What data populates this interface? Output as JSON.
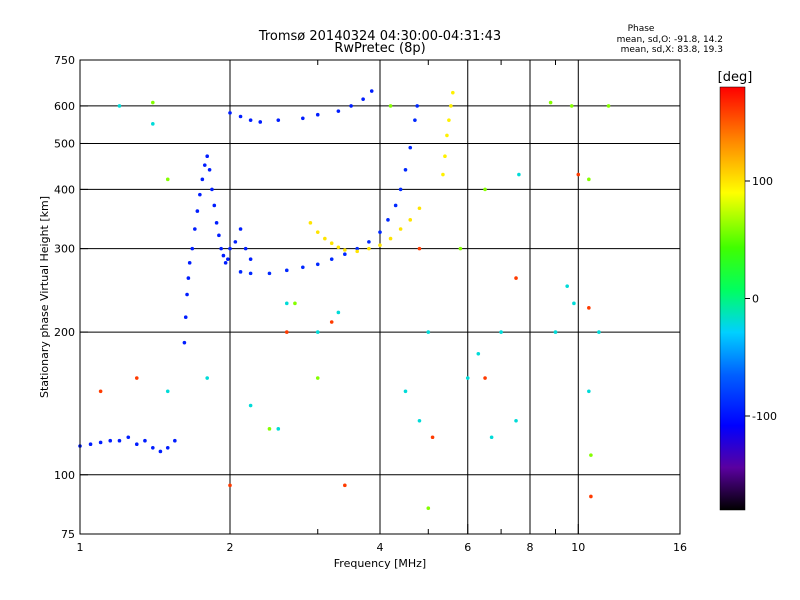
{
  "chart_data": {
    "type": "scatter",
    "title": "Tromsø 20140324 04:30:00-04:31:43",
    "subtitle": "RwPretec (8p)",
    "xlabel": "Frequency [MHz]",
    "ylabel": "Stationary phase Virtual Height [km]",
    "x_scale": "log",
    "y_scale": "log",
    "xlim": [
      1,
      16
    ],
    "ylim": [
      75,
      750
    ],
    "x_ticks": [
      1,
      2,
      4,
      6,
      8,
      10,
      16
    ],
    "x_tick_labels": [
      "1",
      "2",
      "4",
      "6",
      "8",
      "10",
      "16"
    ],
    "x_minor_ticks": [
      3,
      5,
      7,
      9
    ],
    "y_ticks": [
      75,
      100,
      200,
      300,
      400,
      500,
      600,
      750
    ],
    "y_tick_labels": [
      "75",
      "100",
      "200",
      "300",
      "400",
      "500",
      "600",
      "750"
    ],
    "grid": true,
    "stats": {
      "heading": "Phase",
      "line_o": "mean, sd,O: -91.8, 14.2",
      "line_x": "mean, sd,X:  83.8, 19.3"
    },
    "colorbar": {
      "label": "[deg]",
      "range": [
        -180,
        180
      ],
      "ticks": [
        100,
        0,
        -100
      ],
      "tick_labels": [
        "100",
        "0",
        "-100"
      ]
    },
    "series": [
      {
        "phase": -95,
        "points": [
          [
            1.0,
            115
          ],
          [
            1.05,
            116
          ],
          [
            1.1,
            117
          ],
          [
            1.15,
            118
          ],
          [
            1.2,
            118
          ],
          [
            1.25,
            120
          ],
          [
            1.3,
            116
          ],
          [
            1.35,
            118
          ],
          [
            1.4,
            114
          ],
          [
            1.45,
            112
          ],
          [
            1.5,
            114
          ],
          [
            1.55,
            118
          ]
        ]
      },
      {
        "phase": -95,
        "points": [
          [
            1.62,
            190
          ],
          [
            1.63,
            215
          ],
          [
            1.64,
            240
          ],
          [
            1.65,
            260
          ],
          [
            1.66,
            280
          ],
          [
            1.68,
            300
          ],
          [
            1.7,
            330
          ],
          [
            1.72,
            360
          ],
          [
            1.74,
            390
          ],
          [
            1.76,
            420
          ],
          [
            1.78,
            450
          ],
          [
            1.8,
            470
          ],
          [
            1.82,
            440
          ],
          [
            1.84,
            400
          ],
          [
            1.86,
            370
          ],
          [
            1.88,
            340
          ],
          [
            1.9,
            320
          ],
          [
            1.92,
            300
          ],
          [
            1.94,
            290
          ],
          [
            1.96,
            280
          ],
          [
            1.98,
            285
          ],
          [
            2.0,
            300
          ],
          [
            2.05,
            310
          ],
          [
            2.1,
            330
          ],
          [
            2.15,
            300
          ],
          [
            2.2,
            285
          ]
        ]
      },
      {
        "phase": -90,
        "points": [
          [
            2.1,
            268
          ],
          [
            2.2,
            266
          ],
          [
            2.4,
            266
          ],
          [
            2.6,
            270
          ],
          [
            2.8,
            274
          ],
          [
            3.0,
            278
          ],
          [
            3.2,
            285
          ],
          [
            3.4,
            292
          ],
          [
            3.6,
            300
          ],
          [
            3.8,
            310
          ],
          [
            4.0,
            325
          ],
          [
            4.15,
            345
          ],
          [
            4.3,
            370
          ],
          [
            4.4,
            400
          ],
          [
            4.5,
            440
          ],
          [
            4.6,
            490
          ],
          [
            4.7,
            560
          ],
          [
            4.75,
            600
          ]
        ]
      },
      {
        "phase": -95,
        "points": [
          [
            2.0,
            580
          ],
          [
            2.1,
            570
          ],
          [
            2.2,
            560
          ],
          [
            2.3,
            555
          ],
          [
            2.5,
            560
          ],
          [
            2.8,
            565
          ],
          [
            3.0,
            575
          ],
          [
            3.3,
            585
          ],
          [
            3.5,
            600
          ],
          [
            3.7,
            620
          ],
          [
            3.85,
            645
          ]
        ]
      },
      {
        "phase": 100,
        "points": [
          [
            2.9,
            340
          ],
          [
            3.0,
            325
          ],
          [
            3.1,
            315
          ],
          [
            3.2,
            308
          ],
          [
            3.3,
            302
          ],
          [
            3.4,
            298
          ],
          [
            3.6,
            296
          ],
          [
            3.8,
            300
          ],
          [
            4.0,
            305
          ],
          [
            4.2,
            315
          ],
          [
            4.4,
            330
          ],
          [
            4.6,
            345
          ],
          [
            4.8,
            365
          ]
        ]
      },
      {
        "phase": 95,
        "points": [
          [
            5.35,
            430
          ],
          [
            5.4,
            470
          ],
          [
            5.45,
            520
          ],
          [
            5.5,
            560
          ],
          [
            5.55,
            600
          ],
          [
            5.6,
            640
          ]
        ]
      },
      {
        "phase": -20,
        "points": [
          [
            1.2,
            600
          ],
          [
            1.4,
            550
          ],
          [
            1.5,
            150
          ],
          [
            1.8,
            160
          ],
          [
            2.2,
            140
          ],
          [
            2.5,
            125
          ],
          [
            2.6,
            230
          ],
          [
            3.0,
            200
          ],
          [
            3.3,
            220
          ],
          [
            4.5,
            150
          ],
          [
            4.8,
            130
          ],
          [
            5.0,
            200
          ],
          [
            6.0,
            160
          ],
          [
            6.3,
            180
          ],
          [
            6.7,
            120
          ],
          [
            7.0,
            200
          ],
          [
            7.5,
            130
          ],
          [
            7.6,
            430
          ],
          [
            9.0,
            200
          ],
          [
            9.5,
            250
          ],
          [
            9.8,
            230
          ],
          [
            10.5,
            150
          ],
          [
            11.0,
            200
          ]
        ]
      },
      {
        "phase": 160,
        "points": [
          [
            1.1,
            150
          ],
          [
            1.3,
            160
          ],
          [
            2.0,
            95
          ],
          [
            2.6,
            200
          ],
          [
            3.2,
            210
          ],
          [
            3.4,
            95
          ],
          [
            4.8,
            300
          ],
          [
            5.1,
            120
          ],
          [
            6.5,
            160
          ],
          [
            7.5,
            260
          ],
          [
            10.0,
            430
          ],
          [
            10.5,
            225
          ],
          [
            10.6,
            90
          ]
        ]
      },
      {
        "phase": 60,
        "points": [
          [
            1.4,
            610
          ],
          [
            1.5,
            420
          ],
          [
            2.4,
            125
          ],
          [
            2.7,
            230
          ],
          [
            3.0,
            160
          ],
          [
            4.2,
            600
          ],
          [
            5.0,
            85
          ],
          [
            5.8,
            300
          ],
          [
            6.5,
            400
          ],
          [
            8.8,
            610
          ],
          [
            9.7,
            600
          ],
          [
            10.5,
            420
          ],
          [
            10.6,
            110
          ],
          [
            11.5,
            600
          ]
        ]
      }
    ]
  }
}
